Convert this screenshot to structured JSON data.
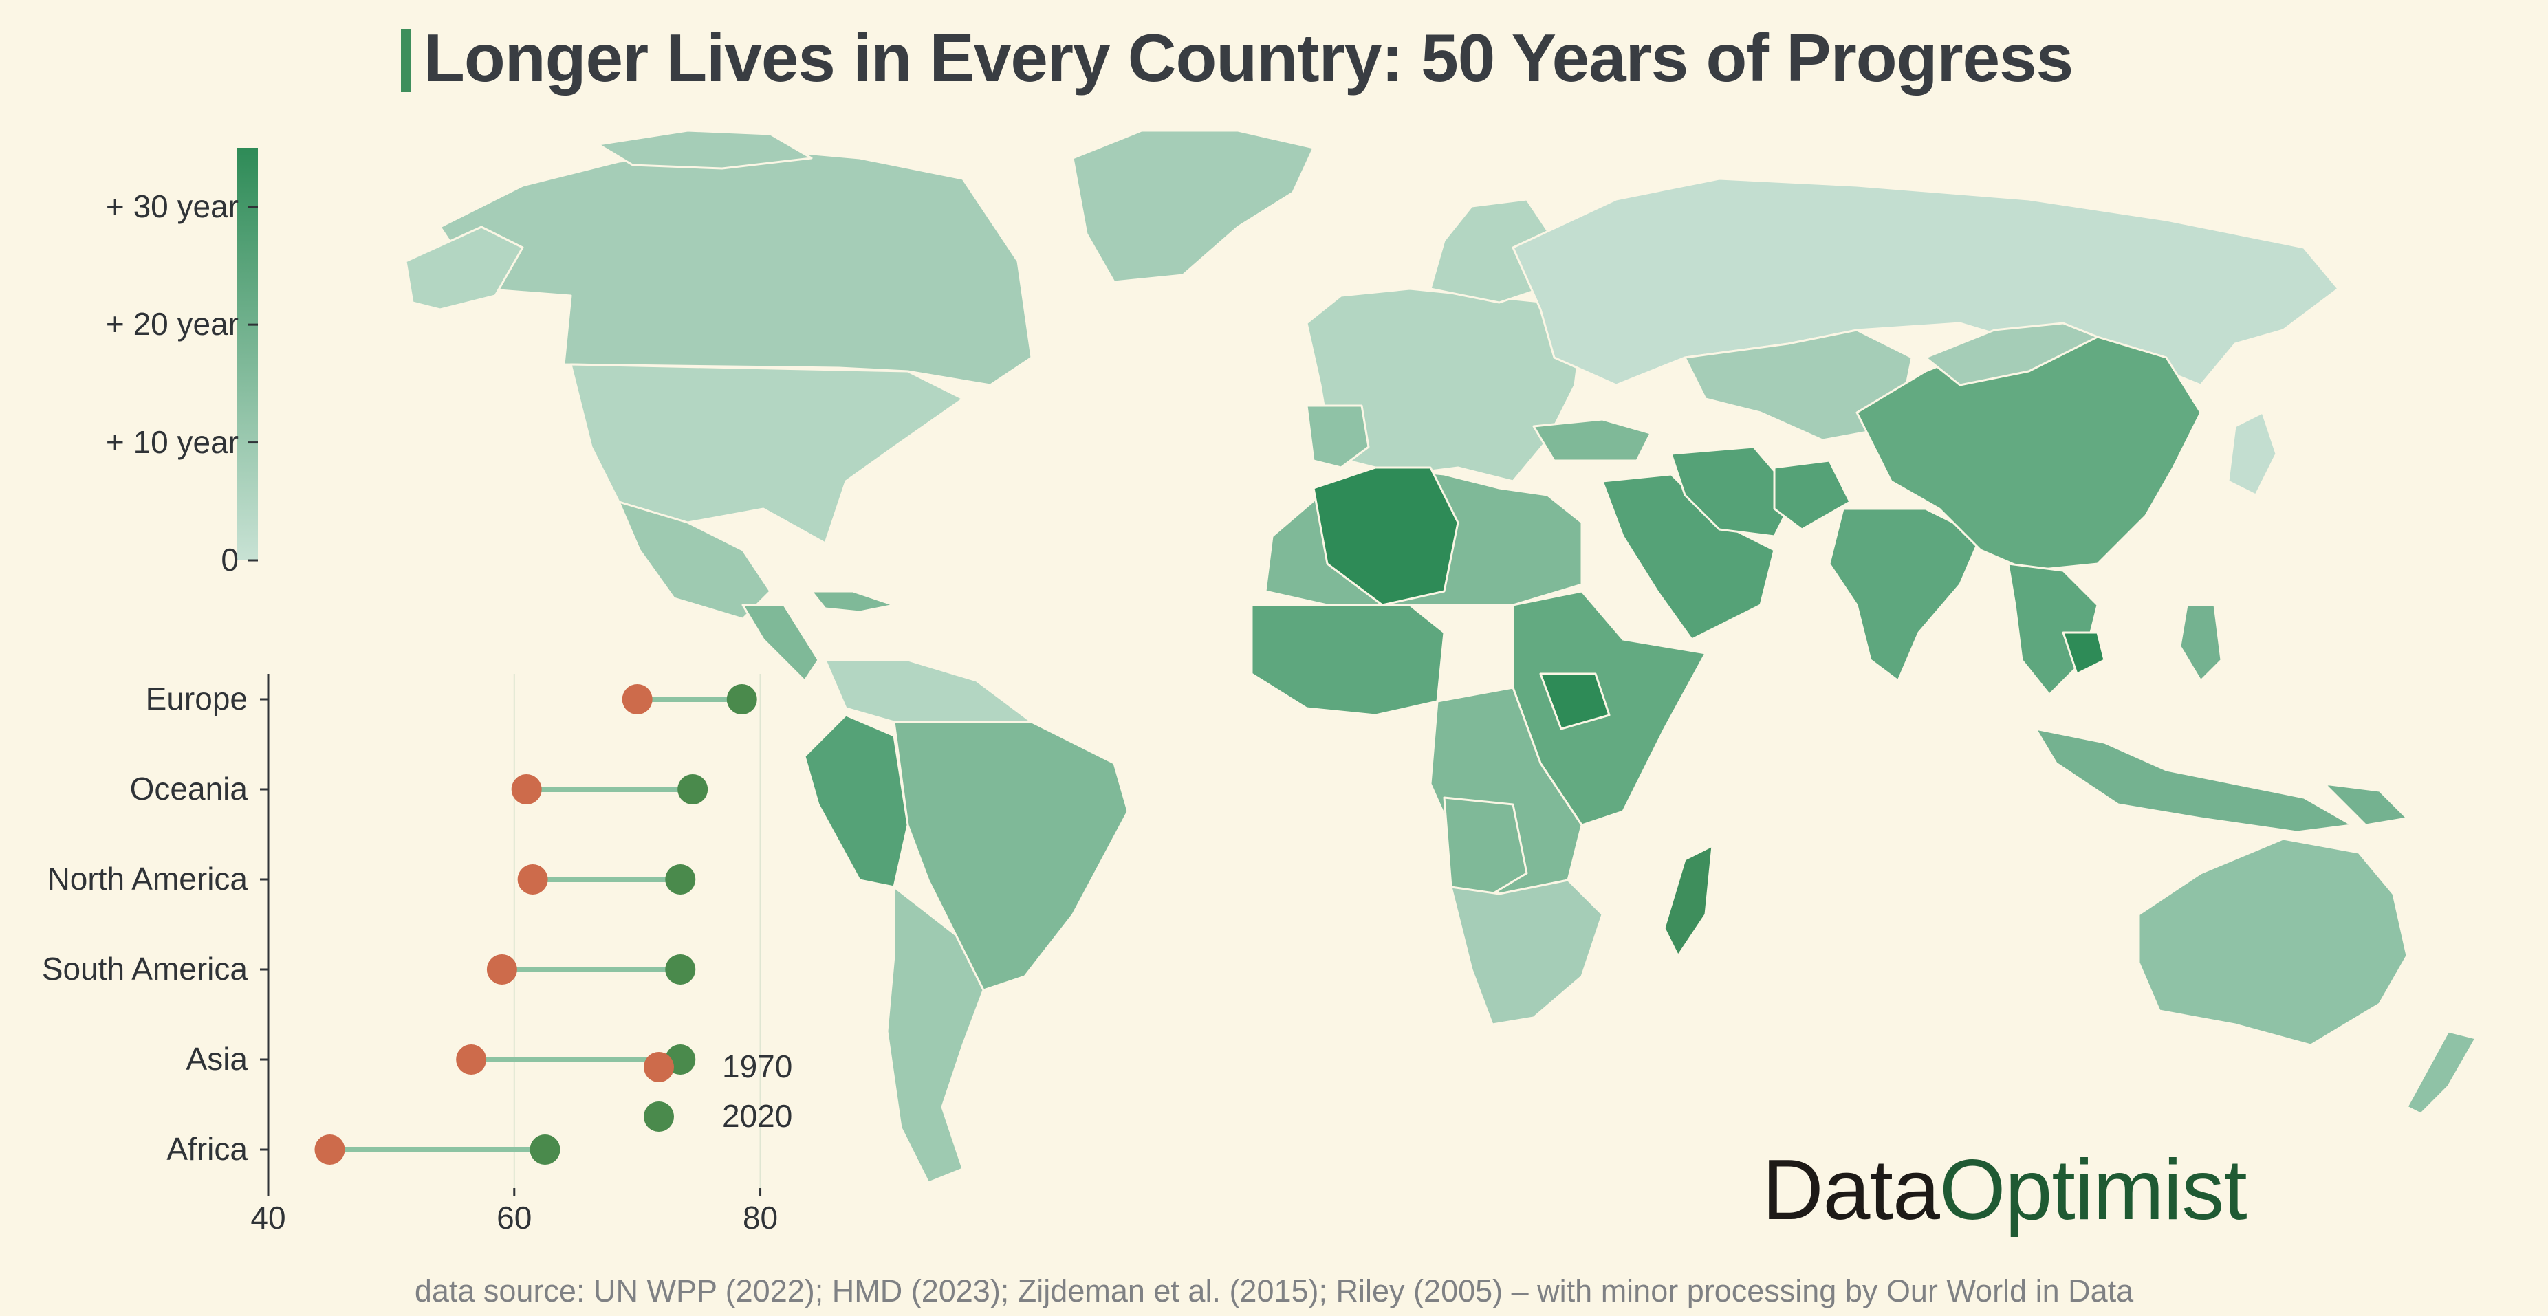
{
  "title": "Longer Lives in Every Country: 50 Years of Progress",
  "source": "data source: UN WPP (2022); HMD (2023); Zijdeman et al. (2015); Riley (2005) – with minor processing by Our World in Data",
  "brand": {
    "part1": "Data",
    "part2": "Optimist"
  },
  "colors": {
    "low": "#c8e2d4",
    "high": "#2e8b57",
    "c1970": "#cd6b4b",
    "c2020": "#4a8a4c",
    "connector": "#8cc3a2",
    "background": "#fbf6e5"
  },
  "legend": {
    "ticks": [
      {
        "value": 0,
        "label": "0"
      },
      {
        "value": 10,
        "label": "+ 10 year"
      },
      {
        "value": 20,
        "label": "+ 20 year"
      },
      {
        "value": 30,
        "label": "+ 30 year"
      }
    ],
    "max": 35
  },
  "chart_data": {
    "type": "dumbbell",
    "categories": [
      "Europe",
      "Oceania",
      "North America",
      "South America",
      "Asia",
      "Africa"
    ],
    "series": [
      {
        "name": "1970",
        "values": [
          70,
          61,
          61.5,
          59,
          56.5,
          45
        ]
      },
      {
        "name": "2020",
        "values": [
          78.5,
          74.5,
          73.5,
          73.5,
          73.5,
          62.5
        ]
      }
    ],
    "xlim": [
      40,
      85
    ],
    "xticks": [
      {
        "value": 40,
        "label": "40"
      },
      {
        "value": 60,
        "label": "60"
      },
      {
        "value": 80,
        "label": "80"
      }
    ]
  }
}
